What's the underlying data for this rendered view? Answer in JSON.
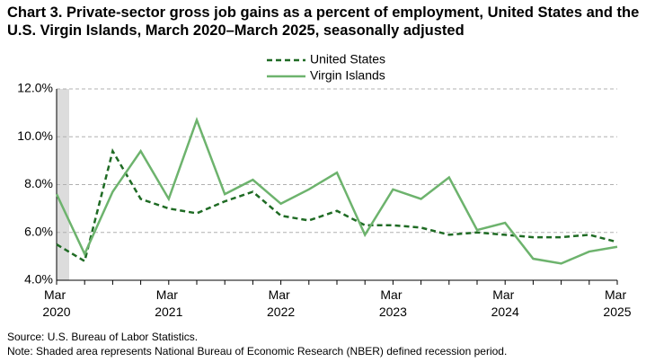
{
  "chart_data": {
    "type": "line",
    "title": "Chart 3. Private-sector gross job gains as a percent of employment, United States and the U.S. Virgin Islands, March 2020–March 2025, seasonally adjusted",
    "categories": [
      "Mar 2020",
      null,
      null,
      null,
      "Mar 2021",
      null,
      null,
      null,
      "Mar 2022",
      null,
      null,
      null,
      "Mar 2023",
      null,
      null,
      null,
      "Mar 2024",
      null,
      null,
      null,
      "Mar 2025"
    ],
    "series": [
      {
        "name": "United States",
        "color": "#1f6b24",
        "dash": true,
        "values": [
          5.5,
          4.8,
          9.4,
          7.4,
          7.0,
          6.8,
          7.3,
          7.7,
          6.7,
          6.5,
          6.9,
          6.3,
          6.3,
          6.2,
          5.9,
          6.0,
          5.9,
          5.8,
          5.8,
          5.9,
          5.6
        ]
      },
      {
        "name": "Virgin Islands",
        "color": "#6db36d",
        "dash": false,
        "values": [
          7.6,
          5.1,
          7.7,
          9.4,
          7.4,
          10.7,
          7.6,
          8.2,
          7.2,
          7.8,
          8.5,
          5.9,
          7.8,
          7.4,
          8.3,
          6.1,
          6.4,
          4.9,
          4.7,
          5.2,
          5.4
        ]
      }
    ],
    "ylim": [
      4,
      12
    ],
    "yticks": [
      {
        "value": 4,
        "label": "4.0%"
      },
      {
        "value": 6,
        "label": "6.0%"
      },
      {
        "value": 8,
        "label": "8.0%"
      },
      {
        "value": 10,
        "label": "10.0%"
      },
      {
        "value": 12,
        "label": "12.0%"
      }
    ],
    "grid": true,
    "legend": "top",
    "source": "Source: U.S. Bureau of Labor Statistics.",
    "note": "Note: Shaded area represents National Bureau of Economic Research (NBER) defined recession period."
  }
}
